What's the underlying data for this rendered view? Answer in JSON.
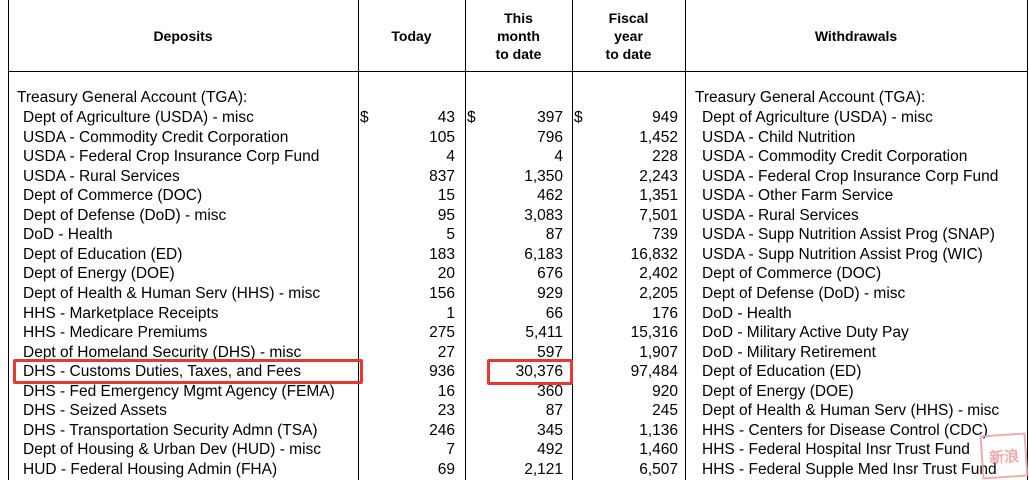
{
  "headers": {
    "deposits": "Deposits",
    "today": "Today",
    "this_month": [
      "This",
      "month",
      "to date"
    ],
    "fiscal_year": [
      "Fiscal",
      "year",
      "to date"
    ],
    "withdrawals": "Withdrawals"
  },
  "section_label_left": "Treasury General Account (TGA):",
  "section_label_right": "Treasury General Account (TGA):",
  "dollar_sign": "$",
  "rows": [
    {
      "deposit": "Dept of Agriculture (USDA) - misc",
      "today": "43",
      "month": "397",
      "fiscal": "949",
      "withdrawal": "Dept of Agriculture (USDA) - misc"
    },
    {
      "deposit": "USDA - Commodity Credit Corporation",
      "today": "105",
      "month": "796",
      "fiscal": "1,452",
      "withdrawal": "USDA - Child Nutrition"
    },
    {
      "deposit": "USDA - Federal Crop Insurance Corp Fund",
      "today": "4",
      "month": "4",
      "fiscal": "228",
      "withdrawal": "USDA - Commodity Credit Corporation"
    },
    {
      "deposit": "USDA - Rural Services",
      "today": "837",
      "month": "1,350",
      "fiscal": "2,243",
      "withdrawal": "USDA - Federal Crop Insurance Corp Fund"
    },
    {
      "deposit": "Dept of Commerce (DOC)",
      "today": "15",
      "month": "462",
      "fiscal": "1,351",
      "withdrawal": "USDA - Other Farm Service"
    },
    {
      "deposit": "Dept of Defense (DoD) - misc",
      "today": "95",
      "month": "3,083",
      "fiscal": "7,501",
      "withdrawal": "USDA - Rural Services"
    },
    {
      "deposit": "DoD - Health",
      "today": "5",
      "month": "87",
      "fiscal": "739",
      "withdrawal": "USDA - Supp Nutrition Assist Prog (SNAP)"
    },
    {
      "deposit": "Dept of Education (ED)",
      "today": "183",
      "month": "6,183",
      "fiscal": "16,832",
      "withdrawal": "USDA - Supp Nutrition Assist Prog (WIC)"
    },
    {
      "deposit": "Dept of Energy (DOE)",
      "today": "20",
      "month": "676",
      "fiscal": "2,402",
      "withdrawal": "Dept of Commerce (DOC)"
    },
    {
      "deposit": "Dept of Health & Human Serv (HHS) - misc",
      "today": "156",
      "month": "929",
      "fiscal": "2,205",
      "withdrawal": "Dept of Defense (DoD) - misc"
    },
    {
      "deposit": "HHS - Marketplace Receipts",
      "today": "1",
      "month": "66",
      "fiscal": "176",
      "withdrawal": "DoD - Health"
    },
    {
      "deposit": "HHS - Medicare Premiums",
      "today": "275",
      "month": "5,411",
      "fiscal": "15,316",
      "withdrawal": "DoD - Military Active Duty Pay"
    },
    {
      "deposit": "Dept of Homeland Security (DHS) - misc",
      "today": "27",
      "month": "597",
      "fiscal": "1,907",
      "withdrawal": "DoD - Military Retirement"
    },
    {
      "deposit": "DHS - Customs Duties, Taxes, and Fees",
      "today": "936",
      "month": "30,376",
      "fiscal": "97,484",
      "withdrawal": "Dept of Education (ED)"
    },
    {
      "deposit": "DHS - Fed Emergency Mgmt Agency (FEMA)",
      "today": "16",
      "month": "360",
      "fiscal": "920",
      "withdrawal": "Dept of Energy (DOE)"
    },
    {
      "deposit": "DHS - Seized Assets",
      "today": "23",
      "month": "87",
      "fiscal": "245",
      "withdrawal": "Dept of Health & Human Serv (HHS) - misc"
    },
    {
      "deposit": "DHS - Transportation Security Admn (TSA)",
      "today": "246",
      "month": "345",
      "fiscal": "1,136",
      "withdrawal": "HHS - Centers for Disease Control (CDC)"
    },
    {
      "deposit": "Dept of Housing & Urban Dev (HUD) - misc",
      "today": "7",
      "month": "492",
      "fiscal": "1,460",
      "withdrawal": "HHS - Federal Hospital Insr Trust Fund"
    },
    {
      "deposit": "HUD - Federal Housing Admin (FHA)",
      "today": "69",
      "month": "2,121",
      "fiscal": "6,507",
      "withdrawal": "HHS - Federal Supple Med Insr Trust Fund"
    }
  ],
  "watermark_text": "新浪"
}
